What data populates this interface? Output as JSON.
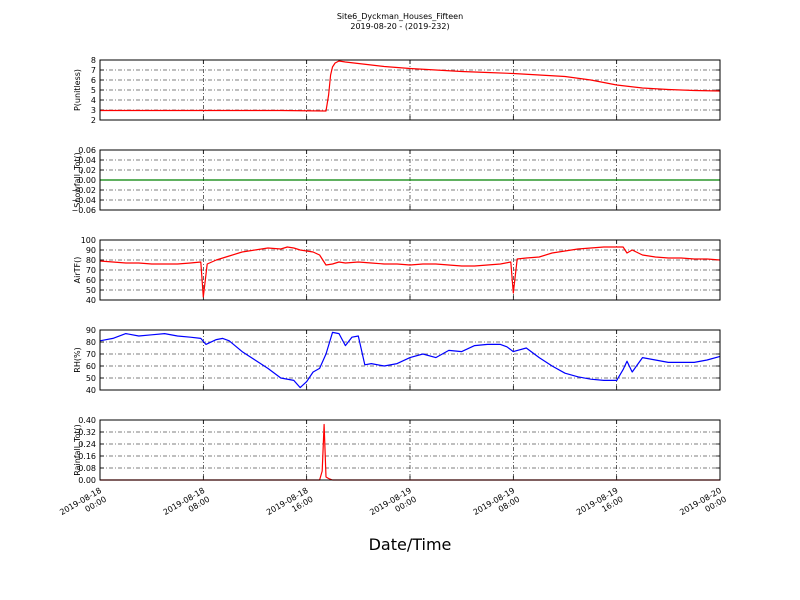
{
  "figure": {
    "title_line1": "Site6_Dyckman_Houses_Fifteen",
    "title_line2": "2019-08-20 - (2019-232)",
    "xlabel": "Date/Time"
  },
  "chart_data": [
    {
      "type": "line",
      "ylabel": "P(unitless)",
      "ylim": [
        2,
        8
      ],
      "yticks": [
        2,
        3,
        4,
        5,
        6,
        7,
        8
      ],
      "ytick_labels": [
        "2",
        "3",
        "4",
        "5",
        "6",
        "7",
        "8"
      ],
      "xlim_hours": [
        0,
        48
      ],
      "grid": true,
      "color": "#ff0000",
      "series": [
        {
          "x": [
            0,
            2,
            4,
            6,
            8,
            10,
            12,
            14,
            17.5,
            17.7,
            17.85,
            18,
            18.2,
            18.5,
            19,
            20,
            21,
            22,
            24,
            26,
            28,
            30,
            32,
            34,
            36,
            38,
            40,
            42,
            44,
            46,
            48
          ],
          "y": [
            2.95,
            2.95,
            2.95,
            2.95,
            2.95,
            2.95,
            2.95,
            2.95,
            2.9,
            4.5,
            6.5,
            7.3,
            7.7,
            7.9,
            7.8,
            7.65,
            7.5,
            7.35,
            7.15,
            7.0,
            6.85,
            6.75,
            6.65,
            6.5,
            6.35,
            6.0,
            5.5,
            5.2,
            5.05,
            4.95,
            4.9
          ]
        }
      ]
    },
    {
      "type": "line",
      "ylabel": "Snowfall_Tot()",
      "ylim": [
        -0.06,
        0.06
      ],
      "yticks": [
        -0.06,
        -0.04,
        -0.02,
        0,
        0.02,
        0.04,
        0.06
      ],
      "ytick_labels": [
        "−0.06",
        "−0.04",
        "−0.02",
        "0.00",
        "0.02",
        "0.04",
        "0.06"
      ],
      "xlim_hours": [
        0,
        48
      ],
      "grid": true,
      "color": "#008000",
      "series": [
        {
          "x": [
            0,
            48
          ],
          "y": [
            0,
            0
          ]
        }
      ]
    },
    {
      "type": "line",
      "ylabel": "AirTF()",
      "ylim": [
        40,
        100
      ],
      "yticks": [
        40,
        50,
        60,
        70,
        80,
        90,
        100
      ],
      "ytick_labels": [
        "40",
        "50",
        "60",
        "70",
        "80",
        "90",
        "100"
      ],
      "xlim_hours": [
        0,
        48
      ],
      "grid": true,
      "color": "#ff0000",
      "series": [
        {
          "x": [
            0,
            1,
            2,
            3,
            4,
            5,
            6,
            7,
            7.8,
            8.0,
            8.3,
            9,
            10,
            11,
            12,
            13,
            14,
            14.5,
            15,
            15.5,
            16,
            16.5,
            17,
            17.5,
            18,
            18.5,
            19,
            20,
            21,
            22,
            23,
            24,
            25,
            26,
            27,
            28,
            29,
            30,
            31,
            31.8,
            32.0,
            32.3,
            33,
            34,
            35,
            36,
            37,
            38,
            39,
            40,
            40.5,
            40.8,
            41.2,
            42,
            43,
            44,
            45,
            46,
            47,
            48
          ],
          "y": [
            79,
            78,
            77,
            77,
            76,
            76,
            76,
            77,
            78,
            43,
            76,
            80,
            84,
            88,
            90,
            92,
            91,
            93,
            92,
            90,
            89,
            88,
            85,
            75,
            76,
            78,
            77,
            78,
            77,
            76,
            76,
            75,
            76,
            76,
            75,
            74,
            74,
            75,
            76,
            78,
            47,
            81,
            82,
            83,
            87,
            89,
            91,
            92,
            93,
            93,
            93,
            87,
            90,
            85,
            83,
            82,
            82,
            81,
            81,
            80
          ]
        }
      ]
    },
    {
      "type": "line",
      "ylabel": "RH(%)",
      "ylim": [
        40,
        90
      ],
      "yticks": [
        40,
        50,
        60,
        70,
        80,
        90
      ],
      "ytick_labels": [
        "40",
        "50",
        "60",
        "70",
        "80",
        "90"
      ],
      "xlim_hours": [
        0,
        48
      ],
      "grid": true,
      "color": "#0000ff",
      "series": [
        {
          "x": [
            0,
            1,
            2,
            3,
            4,
            5,
            6,
            7,
            7.8,
            8.2,
            9,
            9.5,
            10,
            11,
            12,
            13,
            14,
            15,
            15.5,
            16,
            16.5,
            17,
            17.5,
            18,
            18.5,
            19,
            19.5,
            20,
            20.5,
            21,
            22,
            23,
            24,
            25,
            26,
            27,
            28,
            29,
            30,
            31,
            31.5,
            32,
            33,
            34,
            35,
            36,
            37,
            38,
            39,
            40,
            40.5,
            40.8,
            41.2,
            42,
            43,
            44,
            45,
            46,
            47,
            48
          ],
          "y": [
            81,
            83,
            87,
            85,
            86,
            87,
            85,
            84,
            83,
            78,
            82,
            83,
            81,
            72,
            65,
            58,
            50,
            48,
            42,
            47,
            55,
            58,
            70,
            88,
            87,
            77,
            84,
            85,
            61,
            62,
            60,
            62,
            67,
            70,
            67,
            73,
            72,
            77,
            78,
            78,
            76,
            72,
            75,
            67,
            60,
            54,
            51,
            49,
            48,
            48,
            57,
            64,
            55,
            67,
            65,
            63,
            63,
            63,
            65,
            68
          ]
        }
      ]
    },
    {
      "type": "line",
      "ylabel": "Rainfall_Tot()",
      "ylim": [
        0,
        0.4
      ],
      "yticks": [
        0,
        0.08,
        0.16,
        0.24,
        0.32,
        0.4
      ],
      "ytick_labels": [
        "0.00",
        "0.08",
        "0.16",
        "0.24",
        "0.32",
        "0.40"
      ],
      "xlim_hours": [
        0,
        48
      ],
      "grid": true,
      "color": "#ff0000",
      "series": [
        {
          "x": [
            0,
            16.5,
            17,
            17.2,
            17.35,
            17.5,
            17.7,
            18.0,
            18.3,
            48
          ],
          "y": [
            0,
            0,
            0,
            0.06,
            0.37,
            0.02,
            0.01,
            0,
            0,
            0
          ]
        }
      ]
    }
  ],
  "x_axis": {
    "ticks_hours": [
      0,
      8,
      16,
      24,
      32,
      40,
      48
    ],
    "tick_labels": [
      [
        "2019-08-18",
        "00:00"
      ],
      [
        "2019-08-18",
        "08:00"
      ],
      [
        "2019-08-18",
        "16:00"
      ],
      [
        "2019-08-19",
        "00:00"
      ],
      [
        "2019-08-19",
        "08:00"
      ],
      [
        "2019-08-19",
        "16:00"
      ],
      [
        "2019-08-20",
        "00:00"
      ]
    ]
  }
}
